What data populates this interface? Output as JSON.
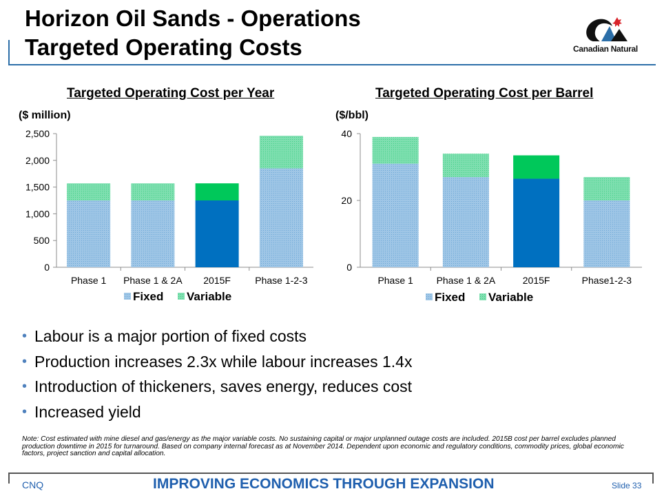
{
  "header": {
    "title_line1": "Horizon Oil Sands - Operations",
    "title_line2": "Targeted Operating Costs",
    "logo_text": "Canadian Natural"
  },
  "chart_data": [
    {
      "type": "bar",
      "title": "Targeted Operating Cost per Year",
      "unit_label": "($ million)",
      "categories": [
        "Phase 1",
        "Phase 1 & 2A",
        "2015F",
        "Phase 1-2-3"
      ],
      "series": [
        {
          "name": "Fixed",
          "values": [
            1250,
            1250,
            1250,
            1850
          ]
        },
        {
          "name": "Variable",
          "values": [
            320,
            320,
            320,
            610
          ]
        }
      ],
      "ylim": [
        0,
        2500
      ],
      "yticks": [
        "0",
        "500",
        "1,000",
        "1,500",
        "2,000",
        "2,500"
      ],
      "ytick_values": [
        0,
        500,
        1000,
        1500,
        2000,
        2500
      ],
      "legend_position": "bottom",
      "highlight_category": "2015F",
      "colors": {
        "fixed": "#9fc6e6",
        "variable": "#7fdfb0",
        "fixed_highlight": "#0070c0",
        "variable_highlight": "#00c85a"
      }
    },
    {
      "type": "bar",
      "title": "Targeted Operating Cost per Barrel",
      "unit_label": "($/bbl)",
      "categories": [
        "Phase 1",
        "Phase 1 & 2A",
        "2015F",
        "Phase1-2-3"
      ],
      "series": [
        {
          "name": "Fixed",
          "values": [
            31,
            27,
            26.5,
            20
          ]
        },
        {
          "name": "Variable",
          "values": [
            8,
            7,
            7,
            7
          ]
        }
      ],
      "ylim": [
        0,
        40
      ],
      "yticks": [
        "0",
        "20",
        "40"
      ],
      "ytick_values": [
        0,
        20,
        40
      ],
      "legend_position": "bottom",
      "highlight_category": "2015F",
      "colors": {
        "fixed": "#9fc6e6",
        "variable": "#7fdfb0",
        "fixed_highlight": "#0070c0",
        "variable_highlight": "#00c85a"
      }
    }
  ],
  "bullets": [
    "Labour is a major portion of fixed costs",
    "Production increases 2.3x while labour increases 1.4x",
    "Introduction of thickeners, saves energy, reduces cost",
    "Increased yield"
  ],
  "note": "Note: Cost estimated with mine diesel and gas/energy as the major variable costs. No sustaining capital or major unplanned outage costs are included. 2015B cost per barrel excludes planned production downtime in 2015 for turnaround. Based on company internal forecast as at November 2014. Dependent upon economic and regulatory conditions, commodity prices, global economic factors, project sanction and capital allocation.",
  "footer": {
    "left": "CNQ",
    "center": "IMPROVING ECONOMICS THROUGH EXPANSION",
    "slide": "Slide 33"
  }
}
